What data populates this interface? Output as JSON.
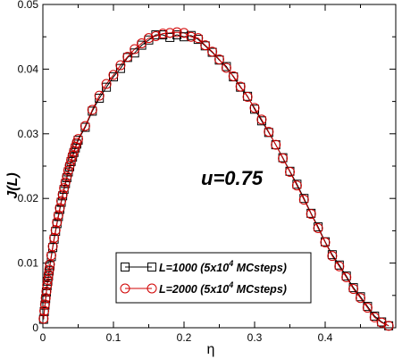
{
  "chart_data": {
    "type": "scatter",
    "xlabel": "η",
    "ylabel": "J(L)",
    "annotation": "u=0.75",
    "xlim": [
      0,
      0.5
    ],
    "ylim": [
      0,
      0.05
    ],
    "x_ticks": [
      0,
      0.1,
      0.2,
      0.3,
      0.4
    ],
    "x_tick_labels": [
      "0",
      "0.1",
      "0.2",
      "0.3",
      "0.4"
    ],
    "y_ticks": [
      0,
      0.01,
      0.02,
      0.03,
      0.04,
      0.05
    ],
    "y_tick_labels": [
      "0",
      "0.01",
      "0.02",
      "0.03",
      "0.04",
      "0.05"
    ],
    "grid": false,
    "legend_position": "bottom-center",
    "series": [
      {
        "name": "L=1000 (5x10⁴ MCsteps)",
        "legend_main": "L=1000 (5x10",
        "legend_sup": "4",
        "legend_tail": " MCsteps)",
        "marker": "square",
        "color": "#000000",
        "x": [
          0.001,
          0.002,
          0.003,
          0.004,
          0.005,
          0.006,
          0.007,
          0.008,
          0.009,
          0.01,
          0.012,
          0.014,
          0.016,
          0.018,
          0.02,
          0.022,
          0.024,
          0.026,
          0.028,
          0.03,
          0.032,
          0.034,
          0.036,
          0.038,
          0.04,
          0.042,
          0.044,
          0.046,
          0.048,
          0.05,
          0.06,
          0.07,
          0.08,
          0.09,
          0.1,
          0.11,
          0.12,
          0.13,
          0.14,
          0.15,
          0.16,
          0.17,
          0.18,
          0.19,
          0.2,
          0.21,
          0.22,
          0.23,
          0.24,
          0.25,
          0.26,
          0.27,
          0.28,
          0.29,
          0.3,
          0.31,
          0.32,
          0.33,
          0.34,
          0.35,
          0.36,
          0.37,
          0.38,
          0.39,
          0.4,
          0.41,
          0.42,
          0.43,
          0.44,
          0.45,
          0.46,
          0.47,
          0.48,
          0.49
        ],
        "y": [
          0.0013,
          0.0025,
          0.0035,
          0.0045,
          0.0055,
          0.0065,
          0.0072,
          0.008,
          0.0088,
          0.0096,
          0.011,
          0.0124,
          0.0137,
          0.0149,
          0.0161,
          0.0172,
          0.0183,
          0.0194,
          0.0204,
          0.0214,
          0.0223,
          0.0232,
          0.0241,
          0.0249,
          0.0257,
          0.0264,
          0.0271,
          0.0278,
          0.0284,
          0.029,
          0.031,
          0.0335,
          0.0355,
          0.0372,
          0.0388,
          0.0401,
          0.0418,
          0.0425,
          0.0437,
          0.0445,
          0.0453,
          0.0453,
          0.0449,
          0.0453,
          0.045,
          0.0452,
          0.0446,
          0.0436,
          0.0426,
          0.0414,
          0.0404,
          0.0388,
          0.0372,
          0.0358,
          0.0338,
          0.032,
          0.0302,
          0.0283,
          0.0263,
          0.0242,
          0.0222,
          0.02,
          0.0177,
          0.0156,
          0.0133,
          0.0113,
          0.0097,
          0.008,
          0.0062,
          0.0048,
          0.0033,
          0.0018,
          0.0009,
          0.0003
        ]
      },
      {
        "name": "L=2000 (5x10⁴ MCsteps)",
        "legend_main": "L=2000 (5x10",
        "legend_sup": "4",
        "legend_tail": " MCsteps)",
        "marker": "circle",
        "color": "#d00000",
        "x": [
          0.001,
          0.002,
          0.003,
          0.004,
          0.005,
          0.006,
          0.007,
          0.008,
          0.009,
          0.01,
          0.012,
          0.014,
          0.016,
          0.018,
          0.02,
          0.022,
          0.024,
          0.026,
          0.028,
          0.03,
          0.032,
          0.034,
          0.036,
          0.038,
          0.04,
          0.042,
          0.044,
          0.046,
          0.048,
          0.05,
          0.06,
          0.07,
          0.08,
          0.09,
          0.1,
          0.11,
          0.12,
          0.13,
          0.14,
          0.15,
          0.16,
          0.17,
          0.18,
          0.19,
          0.2,
          0.21,
          0.22,
          0.23,
          0.24,
          0.25,
          0.26,
          0.27,
          0.28,
          0.29,
          0.3,
          0.31,
          0.32,
          0.33,
          0.34,
          0.35,
          0.36,
          0.37,
          0.38,
          0.39,
          0.4,
          0.41,
          0.42,
          0.43,
          0.44,
          0.45,
          0.46,
          0.47,
          0.48,
          0.49
        ],
        "y": [
          0.0014,
          0.0026,
          0.0036,
          0.0046,
          0.0056,
          0.0066,
          0.0074,
          0.0082,
          0.009,
          0.0098,
          0.0112,
          0.0126,
          0.0139,
          0.0151,
          0.0163,
          0.0174,
          0.0185,
          0.0196,
          0.0206,
          0.0216,
          0.0225,
          0.0234,
          0.0243,
          0.0251,
          0.0259,
          0.0266,
          0.0273,
          0.028,
          0.0286,
          0.0292,
          0.0312,
          0.0337,
          0.0359,
          0.0377,
          0.0391,
          0.0406,
          0.0419,
          0.0431,
          0.044,
          0.0448,
          0.0451,
          0.0455,
          0.0456,
          0.0457,
          0.0456,
          0.045,
          0.0448,
          0.0437,
          0.0427,
          0.0415,
          0.0402,
          0.0389,
          0.0373,
          0.0357,
          0.034,
          0.0322,
          0.0303,
          0.0283,
          0.0262,
          0.0241,
          0.022,
          0.0198,
          0.0176,
          0.0154,
          0.0132,
          0.0111,
          0.0095,
          0.0078,
          0.006,
          0.0046,
          0.0031,
          0.0016,
          0.0008,
          0.0003
        ]
      }
    ]
  }
}
